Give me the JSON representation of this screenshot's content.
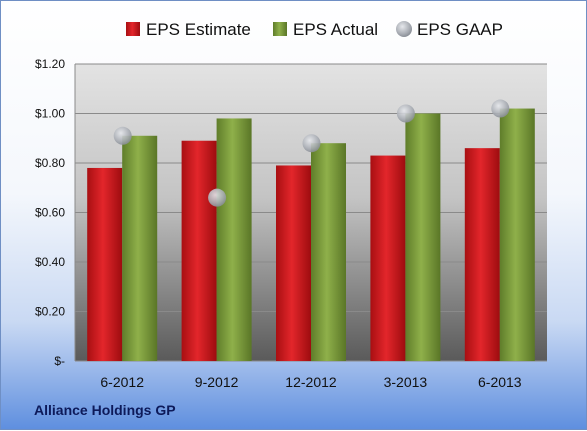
{
  "company": "Alliance Holdings GP",
  "colors": {
    "estimate": "#c8161b",
    "actual": "#7a9a3a",
    "gaap": "#b9bcc2"
  },
  "chart_data": {
    "type": "bar",
    "categories": [
      "6-2012",
      "9-2012",
      "12-2012",
      "3-2013",
      "6-2013"
    ],
    "series": [
      {
        "name": "EPS Estimate",
        "type": "bar",
        "values": [
          0.78,
          0.89,
          0.79,
          0.83,
          0.86
        ]
      },
      {
        "name": "EPS Actual",
        "type": "bar",
        "values": [
          0.91,
          0.98,
          0.88,
          1.0,
          1.02
        ]
      },
      {
        "name": "EPS GAAP",
        "type": "scatter",
        "values": [
          0.91,
          0.66,
          0.88,
          1.0,
          1.02
        ]
      }
    ],
    "ylim": [
      0,
      1.2
    ],
    "yticks": [
      0,
      0.2,
      0.4,
      0.6,
      0.8,
      1.0,
      1.2
    ],
    "ytick_labels": [
      "$-",
      "$0.20",
      "$0.40",
      "$0.60",
      "$0.80",
      "$1.00",
      "$1.20"
    ],
    "grid": true,
    "legend": "top"
  }
}
